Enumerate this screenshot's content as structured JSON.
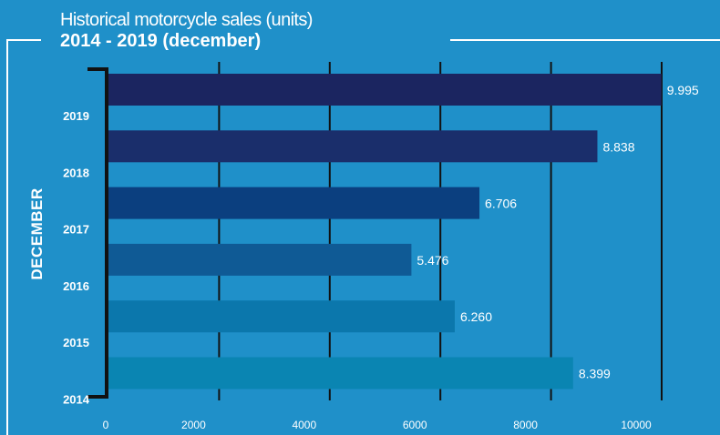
{
  "chart_data": {
    "type": "bar",
    "orientation": "horizontal",
    "title": "Historical motorcycle sales (units)",
    "subtitle": "2014 - 2019 (december)",
    "ylabel": "DECEMBER",
    "xlabel": "",
    "categories": [
      "2019",
      "2018",
      "2017",
      "2016",
      "2015",
      "2014"
    ],
    "values": [
      9995,
      8838,
      6706,
      5476,
      6260,
      8399
    ],
    "value_labels": [
      "9.995",
      "8.838",
      "6.706",
      "5.476",
      "6.260",
      "8.399"
    ],
    "bar_colors": [
      "#1b2560",
      "#1a2e6b",
      "#0b3f7f",
      "#0f5a95",
      "#0b77ac",
      "#0a85b2"
    ],
    "x_ticks": [
      0,
      2000,
      4000,
      6000,
      8000,
      10000
    ],
    "x_tick_labels": [
      "0",
      "2000",
      "4000",
      "6000",
      "8000",
      "10000"
    ],
    "xlim": [
      0,
      10000
    ],
    "grid": true,
    "gridline_color": "#111111",
    "background_color": "#1f90c9",
    "text_color": "#ffffff"
  }
}
